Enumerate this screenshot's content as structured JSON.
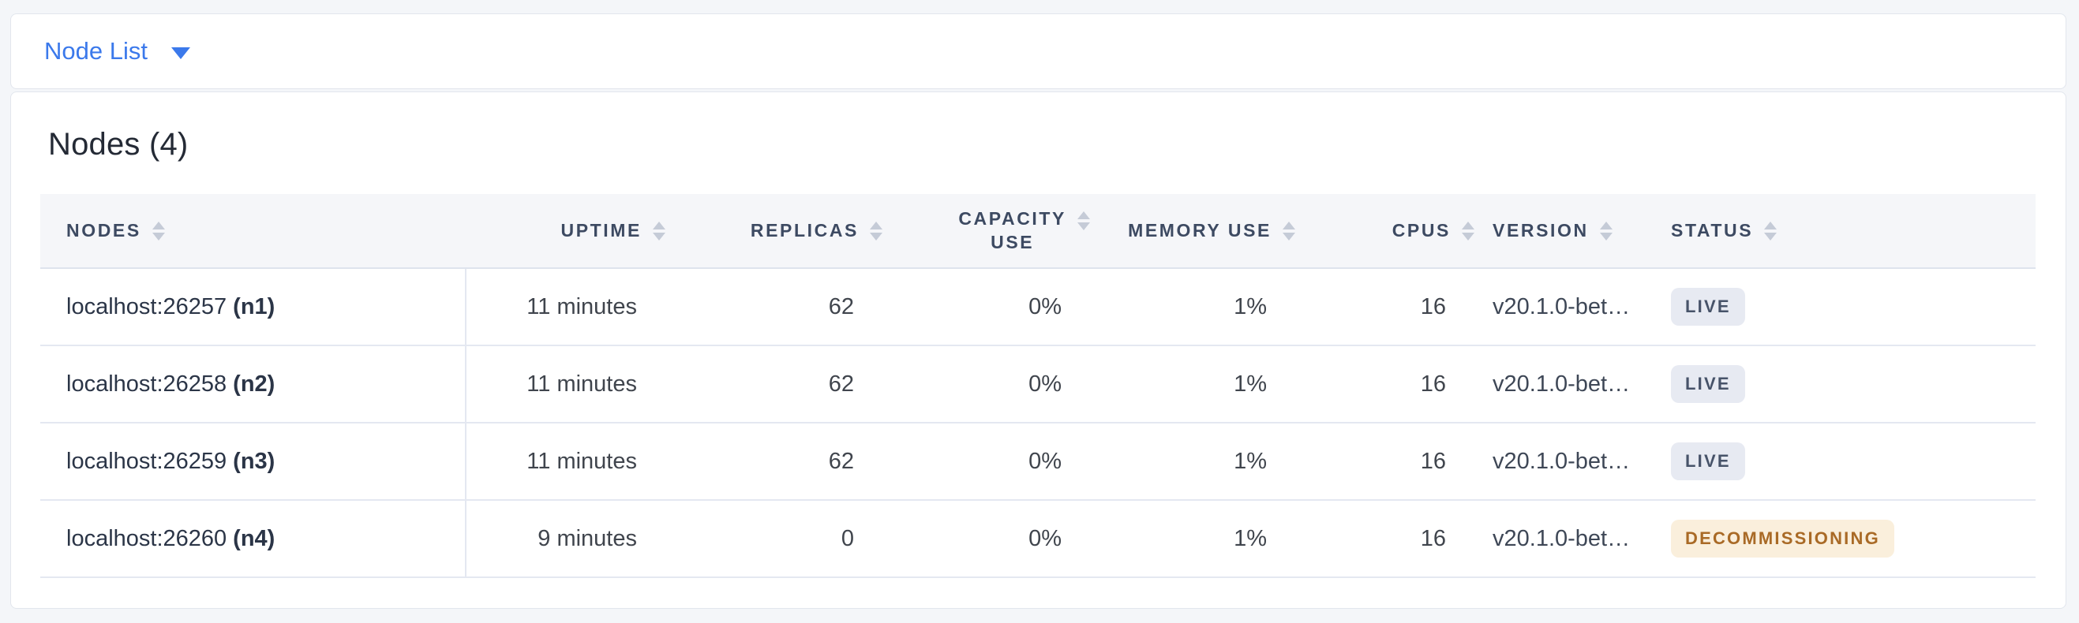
{
  "view_switcher": {
    "selected": "Node List"
  },
  "panel": {
    "title": "Nodes (4)"
  },
  "table": {
    "columns": [
      {
        "key": "nodes",
        "label": "NODES",
        "align": "left"
      },
      {
        "key": "uptime",
        "label": "UPTIME",
        "align": "right"
      },
      {
        "key": "replicas",
        "label": "REPLICAS",
        "align": "right"
      },
      {
        "key": "capacity_use",
        "label": "CAPACITY USE",
        "label_lines": [
          "CAPACITY",
          "USE"
        ],
        "align": "right"
      },
      {
        "key": "memory_use",
        "label": "MEMORY USE",
        "align": "right"
      },
      {
        "key": "cpus",
        "label": "CPUS",
        "align": "right"
      },
      {
        "key": "version",
        "label": "VERSION",
        "align": "left"
      },
      {
        "key": "status",
        "label": "STATUS",
        "align": "left"
      }
    ],
    "rows": [
      {
        "address": "localhost:26257",
        "node_id": "(n1)",
        "uptime": "11 minutes",
        "replicas": "62",
        "capacity_use": "0%",
        "memory_use": "1%",
        "cpus": "16",
        "version": "v20.1.0-bet…",
        "status": "LIVE",
        "status_variant": "live"
      },
      {
        "address": "localhost:26258",
        "node_id": "(n2)",
        "uptime": "11 minutes",
        "replicas": "62",
        "capacity_use": "0%",
        "memory_use": "1%",
        "cpus": "16",
        "version": "v20.1.0-bet…",
        "status": "LIVE",
        "status_variant": "live"
      },
      {
        "address": "localhost:26259",
        "node_id": "(n3)",
        "uptime": "11 minutes",
        "replicas": "62",
        "capacity_use": "0%",
        "memory_use": "1%",
        "cpus": "16",
        "version": "v20.1.0-bet…",
        "status": "LIVE",
        "status_variant": "live"
      },
      {
        "address": "localhost:26260",
        "node_id": "(n4)",
        "uptime": "9 minutes",
        "replicas": "0",
        "capacity_use": "0%",
        "memory_use": "1%",
        "cpus": "16",
        "version": "v20.1.0-bet…",
        "status": "DECOMMISSIONING",
        "status_variant": "decommissioning"
      }
    ]
  },
  "colors": {
    "accent_blue": "#3b79eb",
    "header_text": "#3d4a62",
    "live_badge_bg": "#e7eaf2",
    "live_badge_text": "#475369",
    "decommissioning_badge_bg": "#faefdc",
    "decommissioning_badge_text": "#a96a26"
  }
}
